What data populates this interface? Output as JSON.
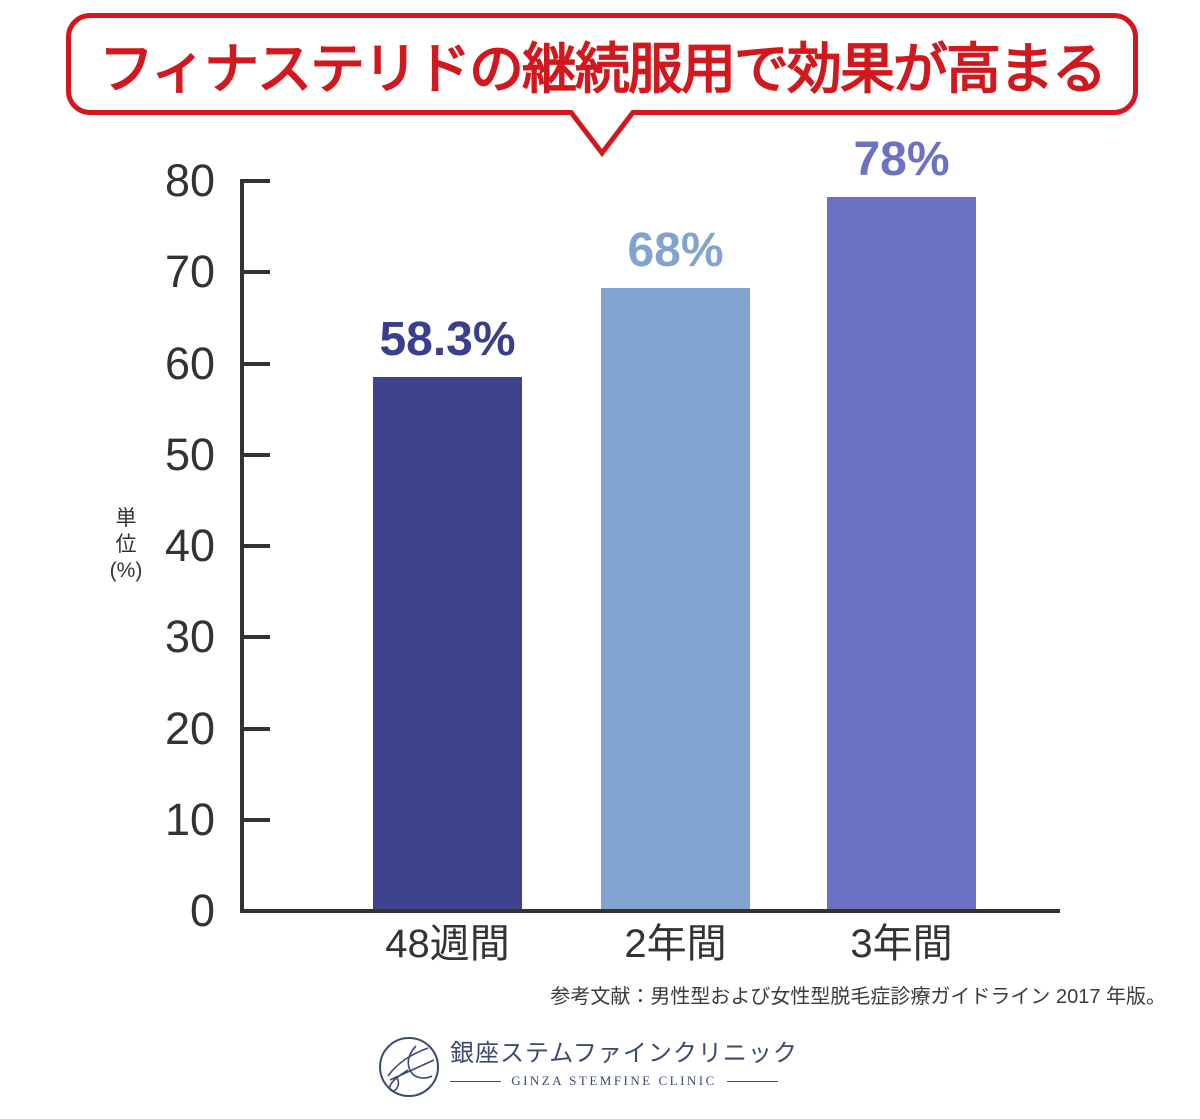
{
  "chart_data": {
    "type": "bar",
    "title": "フィナステリドの継続服用で効果が高まる",
    "title_color": "#d2181d",
    "categories": [
      "48週間",
      "2年間",
      "3年間"
    ],
    "values": [
      58.3,
      68,
      78
    ],
    "value_labels": [
      "58.3%",
      "68%",
      "78%"
    ],
    "bar_colors": [
      "#3e438d",
      "#82a3cf",
      "#6b72c3"
    ],
    "label_colors": [
      "#3a3f8c",
      "#82a3cf",
      "#6b72c3"
    ],
    "ylabel": "単位(%)",
    "ylabel_lines": [
      "単",
      "位",
      "(%)"
    ],
    "yticks": [
      0,
      10,
      20,
      30,
      40,
      50,
      60,
      70,
      80
    ],
    "ylim": [
      0,
      80
    ],
    "grid": false,
    "legend": null,
    "axis_color": "#333333"
  },
  "reference": "参考文献：男性型および女性型脱毛症診療ガイドライン 2017 年版。",
  "footer": {
    "clinic_name_jp": "銀座ステムファインクリニック",
    "clinic_name_en": "GINZA STEMFINE CLINIC",
    "brand_color": "#3b4a74"
  }
}
